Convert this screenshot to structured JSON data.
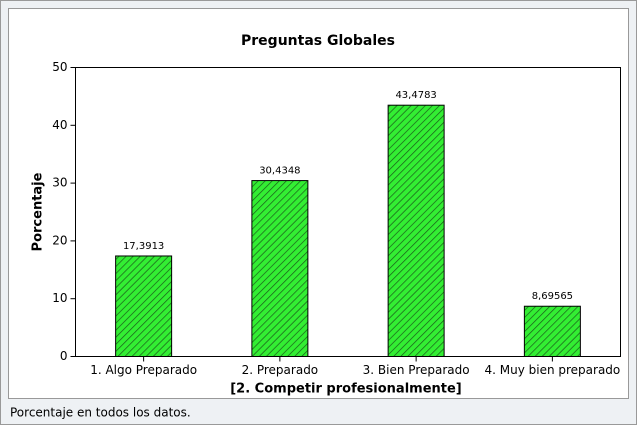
{
  "chart_data": {
    "type": "bar",
    "title": "Preguntas Globales",
    "xlabel": "[2. Competir profesionalmente]",
    "ylabel": "Porcentaje",
    "footnote": "Porcentaje en todos los datos.",
    "categories": [
      "1. Algo Preparado",
      "2. Preparado",
      "3. Bien Preparado",
      "4. Muy bien preparado"
    ],
    "values": [
      17.3913,
      30.4348,
      43.4783,
      8.69565
    ],
    "value_labels": [
      "17,3913",
      "30,4348",
      "43,4783",
      "8,69565"
    ],
    "color": "#33ee33",
    "ylim": [
      0,
      50
    ],
    "yticks": [
      0,
      10,
      20,
      30,
      40,
      50
    ]
  }
}
